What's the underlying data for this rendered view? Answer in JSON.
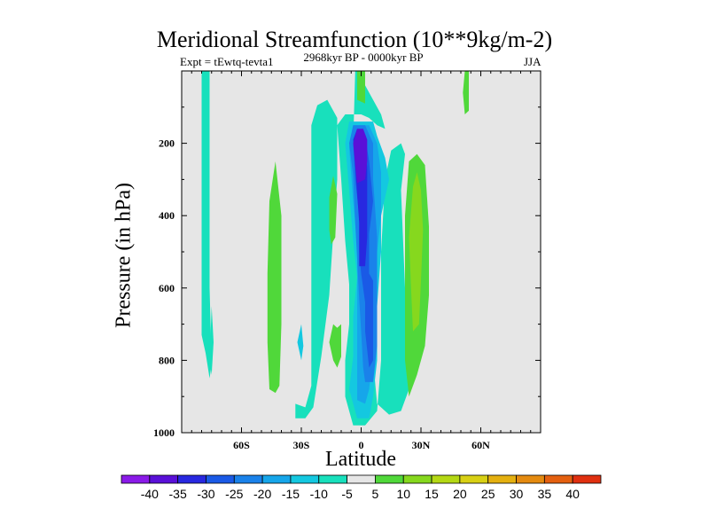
{
  "chart_data": {
    "type": "contour",
    "title": "Meridional Streamfunction (10**9kg/m-2)",
    "experiment": "Expt = tEwtq-tevta1",
    "period": "2968kyr BP - 0000kyr BP",
    "season": "JJA",
    "xlabel": "Latitude",
    "ylabel": "Pressure (in hPa)",
    "xlim": [
      -90,
      90
    ],
    "ylim": [
      1000,
      0
    ],
    "x_ticks": [
      {
        "value": -60,
        "label": "60S"
      },
      {
        "value": -30,
        "label": "30S"
      },
      {
        "value": 0,
        "label": "0"
      },
      {
        "value": 30,
        "label": "30N"
      },
      {
        "value": 60,
        "label": "60N"
      }
    ],
    "y_ticks": [
      {
        "value": 200,
        "label": "200"
      },
      {
        "value": 400,
        "label": "400"
      },
      {
        "value": 600,
        "label": "600"
      },
      {
        "value": 800,
        "label": "800"
      },
      {
        "value": 1000,
        "label": "1000"
      }
    ],
    "background_color": "#e6e6e6",
    "colorbar": {
      "levels": [
        -40,
        -35,
        -30,
        -25,
        -20,
        -15,
        -10,
        -5,
        5,
        10,
        15,
        20,
        25,
        30,
        35,
        40
      ],
      "labels": [
        "-40",
        "-35",
        "-30",
        "-25",
        "-20",
        "-15",
        "-10",
        "-5",
        "5",
        "10",
        "15",
        "20",
        "25",
        "30",
        "35",
        "40"
      ],
      "colors": [
        "#8a1ae8",
        "#5a10d8",
        "#2828e0",
        "#1a5ae6",
        "#1a82ea",
        "#16a6ea",
        "#14c8e0",
        "#18e0bc",
        "#e6e6e6",
        "#50d83a",
        "#86d81e",
        "#b4d814",
        "#d8d014",
        "#e4b010",
        "#e48a10",
        "#e46010",
        "#e03010"
      ]
    },
    "regions": [
      {
        "name": "cell-60s-left",
        "value": -7,
        "points": [
          [
            -80,
            0
          ],
          [
            -76,
            0
          ],
          [
            -76,
            600
          ],
          [
            -75,
            810
          ],
          [
            -76,
            850
          ],
          [
            -78,
            780
          ],
          [
            -80,
            730
          ]
        ]
      },
      {
        "name": "cell-60s-right",
        "value": -7,
        "points": [
          [
            -75,
            650
          ],
          [
            -74,
            750
          ],
          [
            -75,
            840
          ],
          [
            -76,
            800
          ]
        ]
      },
      {
        "name": "pos-40s",
        "value": 7,
        "points": [
          [
            -43,
            890
          ],
          [
            -41,
            870
          ],
          [
            -40,
            700
          ],
          [
            -40,
            400
          ],
          [
            -43,
            250
          ],
          [
            -46,
            360
          ],
          [
            -47,
            560
          ],
          [
            -47,
            750
          ],
          [
            -46,
            880
          ]
        ]
      },
      {
        "name": "neg-30s",
        "value": -7,
        "points": [
          [
            -33,
            920
          ],
          [
            -28,
            930
          ],
          [
            -25,
            870
          ],
          [
            -25,
            640
          ],
          [
            -25,
            150
          ],
          [
            -22,
            95
          ],
          [
            -17,
            80
          ],
          [
            -12,
            130
          ],
          [
            -12,
            300
          ],
          [
            -14,
            450
          ],
          [
            -16,
            620
          ],
          [
            -20,
            790
          ],
          [
            -24,
            930
          ],
          [
            -28,
            960
          ],
          [
            -33,
            960
          ]
        ]
      },
      {
        "name": "neg-30s-inner",
        "value": -12,
        "points": [
          [
            -32,
            750
          ],
          [
            -30,
            700
          ],
          [
            -29,
            760
          ],
          [
            -30,
            800
          ]
        ]
      },
      {
        "name": "neg-0-full",
        "value": -7,
        "points": [
          [
            -4,
            980
          ],
          [
            2,
            980
          ],
          [
            8,
            940
          ],
          [
            10,
            800
          ],
          [
            10,
            500
          ],
          [
            12,
            300
          ],
          [
            15,
            220
          ],
          [
            20,
            200
          ],
          [
            22,
            230
          ],
          [
            20,
            330
          ],
          [
            22,
            600
          ],
          [
            24,
            750
          ],
          [
            24,
            880
          ],
          [
            20,
            940
          ],
          [
            14,
            950
          ],
          [
            8,
            920
          ],
          [
            6,
            800
          ],
          [
            4,
            600
          ],
          [
            4,
            400
          ],
          [
            -2,
            300
          ],
          [
            -4,
            200
          ],
          [
            -3,
            0
          ],
          [
            1,
            0
          ],
          [
            2,
            40
          ],
          [
            6,
            80
          ],
          [
            10,
            120
          ],
          [
            12,
            160
          ],
          [
            8,
            150
          ],
          [
            4,
            130
          ],
          [
            0,
            120
          ],
          [
            -8,
            120
          ],
          [
            -12,
            150
          ],
          [
            -10,
            300
          ],
          [
            -8,
            470
          ],
          [
            -6,
            590
          ],
          [
            -6,
            700
          ],
          [
            -8,
            800
          ],
          [
            -8,
            900
          ]
        ]
      },
      {
        "name": "neg-0-lower",
        "value": -12,
        "points": [
          [
            -2,
            960
          ],
          [
            4,
            960
          ],
          [
            6,
            900
          ],
          [
            8,
            800
          ],
          [
            8,
            650
          ],
          [
            10,
            500
          ],
          [
            10,
            400
          ],
          [
            14,
            300
          ],
          [
            12,
            240
          ],
          [
            8,
            180
          ],
          [
            6,
            140
          ],
          [
            -6,
            140
          ],
          [
            -8,
            200
          ],
          [
            -6,
            330
          ],
          [
            -4,
            470
          ],
          [
            -2,
            570
          ],
          [
            -4,
            680
          ],
          [
            -4,
            790
          ],
          [
            -6,
            880
          ]
        ]
      },
      {
        "name": "neg-0-mid",
        "value": -17,
        "points": [
          [
            -2,
            910
          ],
          [
            2,
            920
          ],
          [
            4,
            880
          ],
          [
            6,
            780
          ],
          [
            6,
            640
          ],
          [
            8,
            500
          ],
          [
            10,
            400
          ],
          [
            10,
            280
          ],
          [
            8,
            200
          ],
          [
            4,
            150
          ],
          [
            -4,
            150
          ],
          [
            -6,
            210
          ],
          [
            -4,
            360
          ],
          [
            -2,
            480
          ],
          [
            -2,
            560
          ],
          [
            -2,
            700
          ],
          [
            -2,
            820
          ]
        ]
      },
      {
        "name": "neg-0-inner",
        "value": -22,
        "points": [
          [
            2,
            860
          ],
          [
            6,
            860
          ],
          [
            8,
            760
          ],
          [
            8,
            600
          ],
          [
            8,
            460
          ],
          [
            6,
            300
          ],
          [
            6,
            200
          ],
          [
            2,
            150
          ],
          [
            -4,
            150
          ],
          [
            -6,
            200
          ],
          [
            -4,
            290
          ],
          [
            -3,
            420
          ],
          [
            -2,
            520
          ],
          [
            -1,
            630
          ],
          [
            0,
            720
          ],
          [
            1,
            820
          ]
        ]
      },
      {
        "name": "neg-0-core",
        "value": -27,
        "points": [
          [
            4,
            820
          ],
          [
            6,
            800
          ],
          [
            6,
            700
          ],
          [
            6,
            580
          ],
          [
            4,
            560
          ],
          [
            4,
            450
          ],
          [
            6,
            360
          ],
          [
            4,
            250
          ],
          [
            2,
            180
          ],
          [
            -2,
            160
          ],
          [
            -4,
            200
          ],
          [
            -3,
            300
          ],
          [
            -1,
            400
          ],
          [
            -1,
            500
          ],
          [
            0,
            560
          ],
          [
            2,
            640
          ],
          [
            2,
            720
          ]
        ]
      },
      {
        "name": "neg-0-deep",
        "value": -32,
        "points": [
          [
            -1,
            540
          ],
          [
            2,
            540
          ],
          [
            3,
            460
          ],
          [
            3,
            360
          ],
          [
            3,
            270
          ],
          [
            2,
            180
          ],
          [
            -2,
            160
          ],
          [
            -4,
            190
          ],
          [
            -3,
            260
          ],
          [
            -2,
            340
          ],
          [
            -1,
            420
          ],
          [
            -1,
            480
          ]
        ]
      },
      {
        "name": "neg-0-max",
        "value": -37,
        "points": [
          [
            -2,
            310
          ],
          [
            2,
            300
          ],
          [
            3,
            250
          ],
          [
            3,
            190
          ],
          [
            1,
            160
          ],
          [
            -2,
            160
          ],
          [
            -4,
            200
          ],
          [
            -3,
            260
          ]
        ]
      },
      {
        "name": "pos-0-top",
        "value": 7,
        "points": [
          [
            -2,
            0
          ],
          [
            -2,
            80
          ],
          [
            2,
            90
          ],
          [
            2,
            0
          ]
        ]
      },
      {
        "name": "pos-20s-upper",
        "value": 7,
        "points": [
          [
            -15,
            480
          ],
          [
            -13,
            460
          ],
          [
            -12,
            340
          ],
          [
            -14,
            290
          ],
          [
            -16,
            350
          ],
          [
            -16,
            440
          ]
        ]
      },
      {
        "name": "pos-20s-lower",
        "value": 7,
        "points": [
          [
            -12,
            820
          ],
          [
            -10,
            790
          ],
          [
            -10,
            700
          ],
          [
            -12,
            710
          ],
          [
            -14,
            700
          ],
          [
            -16,
            750
          ],
          [
            -14,
            800
          ]
        ]
      },
      {
        "name": "pos-25n",
        "value": 7,
        "points": [
          [
            24,
            900
          ],
          [
            28,
            840
          ],
          [
            32,
            760
          ],
          [
            34,
            620
          ],
          [
            34,
            430
          ],
          [
            32,
            260
          ],
          [
            28,
            230
          ],
          [
            24,
            250
          ],
          [
            22,
            400
          ],
          [
            22,
            620
          ],
          [
            22,
            800
          ]
        ]
      },
      {
        "name": "pos-25n-inner",
        "value": 12,
        "points": [
          [
            26,
            720
          ],
          [
            29,
            700
          ],
          [
            30,
            580
          ],
          [
            31,
            440
          ],
          [
            30,
            330
          ],
          [
            28,
            280
          ],
          [
            26,
            320
          ],
          [
            24,
            460
          ],
          [
            25,
            600
          ]
        ]
      },
      {
        "name": "pos-50n",
        "value": 7,
        "points": [
          [
            52,
            120
          ],
          [
            54,
            110
          ],
          [
            54,
            0
          ],
          [
            52,
            0
          ],
          [
            51,
            60
          ]
        ]
      }
    ]
  }
}
